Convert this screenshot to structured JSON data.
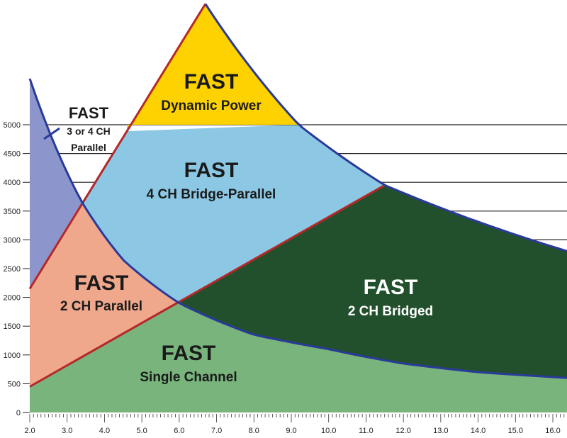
{
  "chart_data": {
    "type": "area",
    "title": "",
    "xlabel": "",
    "ylabel": "",
    "x_ticks": [
      "2.0",
      "3.0",
      "4.0",
      "5.0",
      "6.0",
      "7.0",
      "8.0",
      "9.0",
      "10.0",
      "11.0",
      "12.0",
      "13.0",
      "14.0",
      "15.0",
      "16.0"
    ],
    "y_ticks": [
      "0",
      "500",
      "1000",
      "1500",
      "2000",
      "2500",
      "3000",
      "3500",
      "4000",
      "4500",
      "5000"
    ],
    "xlim": [
      2.0,
      16.4
    ],
    "ylim": [
      0,
      5600
    ],
    "grid": "horizontal lines at 2800-5000 on right side",
    "curves": {
      "blue_boundary": {
        "x": [
          2.0,
          3.4,
          4.5,
          6.0,
          8.0,
          10.0,
          12.0,
          14.0,
          16.4
        ],
        "y": [
          5800,
          3650,
          2650,
          1900,
          1350,
          1100,
          850,
          700,
          600
        ]
      },
      "upper_envelope": {
        "x": [
          4.6,
          6.7,
          9.2,
          11.5,
          16.4
        ],
        "y": [
          5000,
          7100,
          5000,
          3950,
          2800
        ]
      },
      "red_upper": {
        "x": [
          2.0,
          6.7
        ],
        "y": [
          2150,
          7100
        ]
      },
      "red_lower": {
        "x": [
          2.0,
          11.5
        ],
        "y": [
          450,
          3950
        ]
      }
    },
    "regions": [
      {
        "title": "FAST",
        "subtitle": "Dynamic Power",
        "color": "#fdd200"
      },
      {
        "title": "FAST",
        "subtitle": "4 CH Bridge-Parallel",
        "color": "#8cc8e4"
      },
      {
        "title": "FAST",
        "subtitle": "2 CH Parallel",
        "color": "#f0a88c"
      },
      {
        "title": "FAST",
        "subtitle": "2 CH Bridged",
        "color": "#22502c"
      },
      {
        "title": "FAST",
        "subtitle": "Single Channel",
        "color": "#78b47c"
      },
      {
        "title": "FAST",
        "subtitle": "3 or 4 CH",
        "subtitle2": "Parallel",
        "color": "#8c96cc"
      }
    ]
  }
}
